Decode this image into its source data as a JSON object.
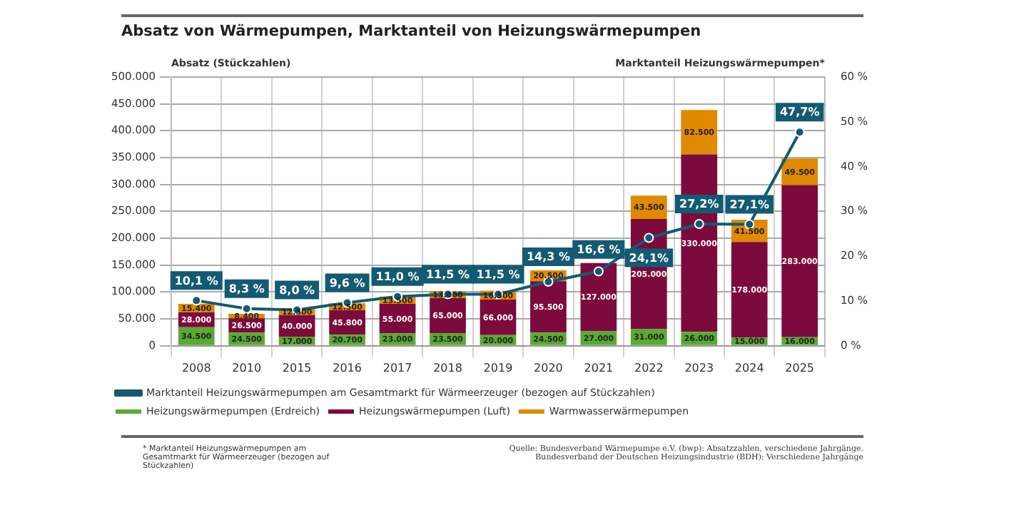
{
  "chart_data": {
    "type": "bar",
    "title": "Absatz von Wärmepumpen, Marktanteil von Heizungswärmepumpen",
    "ylabel": "Absatz (Stückzahlen)",
    "y2label": "Marktanteil Heizungswärmepumpen*",
    "categories": [
      "2008",
      "2010",
      "2015",
      "2016",
      "2017",
      "2018",
      "2019",
      "2020",
      "2021",
      "2022",
      "2023",
      "2024",
      "2025"
    ],
    "stacked": true,
    "series": [
      {
        "name": "Heizungswärmepumpen (Erdreich)",
        "color": "#5aaa32",
        "values": [
          34500,
          24500,
          17000,
          20700,
          23000,
          23500,
          20000,
          24500,
          27000,
          31000,
          26000,
          15000,
          16000
        ],
        "value_labels": [
          "34.500",
          "24.500",
          "17.000",
          "20.700",
          "23.000",
          "23.500",
          "20.000",
          "24.500",
          "27.000",
          "31.000",
          "26.000",
          "15.000",
          "16.000"
        ]
      },
      {
        "name": "Heizungswärmepumpen (Luft)",
        "color": "#7d0a3c",
        "values": [
          28000,
          26500,
          40000,
          45800,
          55000,
          65000,
          66000,
          95500,
          127000,
          205000,
          330000,
          178000,
          283000
        ],
        "value_labels": [
          "28.000",
          "26.500",
          "40.000",
          "45.800",
          "55.000",
          "65.000",
          "66.000",
          "95.500",
          "127.000",
          "205.000",
          "330.000",
          "178.000",
          "283.000"
        ]
      },
      {
        "name": "Warmwasserwärmepumpen",
        "color": "#e08a00",
        "values": [
          15400,
          8400,
          12500,
          12500,
          13500,
          13000,
          16500,
          20500,
          null,
          43500,
          82500,
          41500,
          49500
        ],
        "value_labels": [
          "15.400",
          "8.400",
          "12.500",
          "12.500",
          "13.500",
          "13.000",
          "16.500",
          "20.500",
          null,
          "43.500",
          "82.500",
          "41.500",
          "49.500"
        ]
      },
      {
        "name": "Marktanteil Heizungswärmepumpen am Gesamtmarkt für Wärmeerzeuger (bezogen auf Stückzahlen)",
        "type": "line",
        "axis": "y2",
        "color": "#135a72",
        "marker": "circle",
        "line_style": "solid",
        "values": [
          10.1,
          8.3,
          8.0,
          9.6,
          11.0,
          11.5,
          11.5,
          14.3,
          16.6,
          24.1,
          27.2,
          27.1,
          47.7
        ],
        "value_labels": [
          "10,1 %",
          "8,3 %",
          "8,0 %",
          "9,6 %",
          "11,0 %",
          "11,5 %",
          "11,5 %",
          "14,3 %",
          "16,6 %",
          "24,1%",
          "27,2%",
          "27,1%",
          "47,7%"
        ]
      }
    ],
    "ylim": [
      0,
      500000
    ],
    "yticks": [
      {
        "value": 0,
        "label": "0"
      },
      {
        "value": 50000,
        "label": "50.000"
      },
      {
        "value": 100000,
        "label": "100.000"
      },
      {
        "value": 150000,
        "label": "150.000"
      },
      {
        "value": 200000,
        "label": "200.000"
      },
      {
        "value": 250000,
        "label": "250.000"
      },
      {
        "value": 300000,
        "label": "300.000"
      },
      {
        "value": 350000,
        "label": "350.000"
      },
      {
        "value": 400000,
        "label": "400.000"
      },
      {
        "value": 450000,
        "label": "450.000"
      },
      {
        "value": 500000,
        "label": "500.000"
      }
    ],
    "y2lim": [
      0,
      60
    ],
    "y2ticks": [
      {
        "value": 0,
        "label": "0 %"
      },
      {
        "value": 10,
        "label": "10 %"
      },
      {
        "value": 20,
        "label": "20 %"
      },
      {
        "value": 30,
        "label": "30 %"
      },
      {
        "value": 40,
        "label": "40 %"
      },
      {
        "value": 50,
        "label": "50 %"
      },
      {
        "value": 60,
        "label": "60 %"
      }
    ],
    "grid": true,
    "legend": "bottom",
    "annotations": [
      "* Marktanteil Heizungswärmepumpen am Gesamtmarkt für Wärmeerzeuger (bezogen auf Stückzahlen)",
      "Quelle: Bundesverband Wärmepumpe e.V. (bwp): Absatzzahlen, verschiedene Jahrgänge.",
      "Bundesverband der Deutschen Heizungsindustrie (BDH): Verschiedene Jahrgänge"
    ]
  }
}
